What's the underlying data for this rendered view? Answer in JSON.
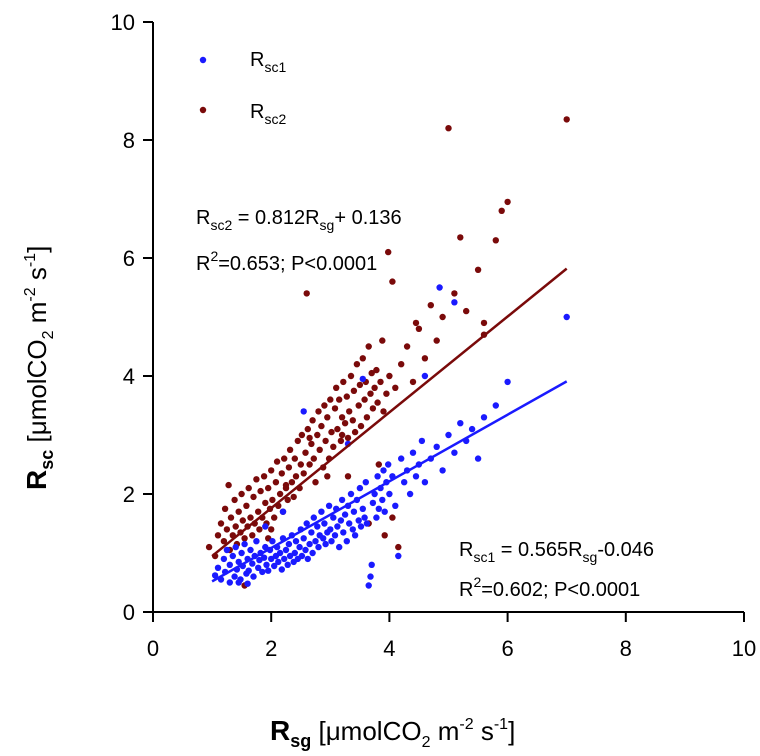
{
  "chart_data": {
    "type": "scatter",
    "xlim": [
      0,
      10
    ],
    "ylim": [
      0,
      10
    ],
    "x_ticks": [
      "0",
      "2",
      "4",
      "6",
      "8",
      "10"
    ],
    "y_ticks": [
      "0",
      "2",
      "4",
      "6",
      "8",
      "10"
    ],
    "xlabel": {
      "main": "R",
      "sub": "sg",
      "unit_pre": " [μmolCO",
      "unit_sub": "2",
      "unit_mid": " m",
      "unit_sup1": "-2",
      "unit_mid2": " s",
      "unit_sup2": "-1",
      "unit_post": "]"
    },
    "ylabel": {
      "main": "R",
      "sub": "sc",
      "unit_pre": " [μmolCO",
      "unit_sub": "2",
      "unit_mid": " m",
      "unit_sup1": "-2",
      "unit_mid2": " s",
      "unit_sup2": "-1",
      "unit_post": "]"
    },
    "grid": false,
    "legend_position": "top-left",
    "series": [
      {
        "name_main": "R",
        "name_sub": "sc1",
        "color": "#1a1aff",
        "fit": {
          "slope": 0.565,
          "intercept": -0.046,
          "x_range": [
            1.0,
            7.0
          ]
        },
        "equation": {
          "lhs_main": "R",
          "lhs_sub": "sc1",
          "mid": " = 0.565R",
          "mid_sub": "sg",
          "rhs": "-0.046"
        },
        "stats": {
          "r": "R",
          "sup": "2",
          "rest": "=0.602; P<0.0001"
        },
        "points": [
          [
            1.05,
            0.62
          ],
          [
            1.1,
            0.75
          ],
          [
            1.15,
            0.55
          ],
          [
            1.2,
            0.9
          ],
          [
            1.22,
            0.68
          ],
          [
            1.25,
            1.05
          ],
          [
            1.3,
            0.5
          ],
          [
            1.3,
            0.8
          ],
          [
            1.35,
            0.95
          ],
          [
            1.38,
            0.6
          ],
          [
            1.4,
            1.1
          ],
          [
            1.42,
            0.72
          ],
          [
            1.45,
            0.85
          ],
          [
            1.48,
            0.55
          ],
          [
            1.5,
            1.0
          ],
          [
            1.52,
            0.78
          ],
          [
            1.55,
            1.15
          ],
          [
            1.58,
            0.65
          ],
          [
            1.6,
            0.9
          ],
          [
            1.62,
            0.7
          ],
          [
            1.65,
            1.05
          ],
          [
            1.68,
            0.82
          ],
          [
            1.7,
            0.6
          ],
          [
            1.72,
            0.95
          ],
          [
            1.75,
            1.2
          ],
          [
            1.78,
            0.75
          ],
          [
            1.8,
            0.88
          ],
          [
            1.82,
            1.0
          ],
          [
            1.85,
            0.68
          ],
          [
            1.88,
            0.92
          ],
          [
            1.9,
            1.1
          ],
          [
            1.92,
            0.8
          ],
          [
            1.95,
            0.7
          ],
          [
            1.98,
            1.05
          ],
          [
            2.0,
            0.9
          ],
          [
            2.02,
            1.2
          ],
          [
            2.05,
            0.78
          ],
          [
            2.08,
            0.95
          ],
          [
            2.1,
            1.1
          ],
          [
            2.12,
            0.85
          ],
          [
            2.15,
            1.0
          ],
          [
            2.18,
            0.72
          ],
          [
            2.2,
            1.25
          ],
          [
            2.22,
            0.9
          ],
          [
            2.25,
            1.05
          ],
          [
            2.28,
            0.8
          ],
          [
            2.3,
            1.15
          ],
          [
            2.32,
            0.95
          ],
          [
            2.35,
            1.3
          ],
          [
            2.38,
            0.85
          ],
          [
            2.4,
            1.0
          ],
          [
            2.42,
            1.2
          ],
          [
            2.45,
            0.9
          ],
          [
            2.48,
            1.1
          ],
          [
            2.5,
            1.4
          ],
          [
            2.52,
            0.95
          ],
          [
            2.55,
            1.25
          ],
          [
            2.58,
            1.05
          ],
          [
            2.6,
            1.5
          ],
          [
            2.62,
            0.9
          ],
          [
            2.65,
            1.15
          ],
          [
            2.68,
            1.35
          ],
          [
            2.7,
            1.0
          ],
          [
            2.72,
            1.6
          ],
          [
            2.75,
            1.2
          ],
          [
            2.78,
            1.45
          ],
          [
            2.8,
            1.1
          ],
          [
            2.82,
            1.3
          ],
          [
            2.85,
            1.7
          ],
          [
            2.88,
            1.25
          ],
          [
            2.9,
            1.5
          ],
          [
            2.92,
            1.15
          ],
          [
            2.95,
            1.35
          ],
          [
            2.98,
            1.8
          ],
          [
            3.0,
            1.4
          ],
          [
            3.02,
            1.2
          ],
          [
            3.05,
            1.6
          ],
          [
            3.08,
            1.3
          ],
          [
            3.1,
            1.75
          ],
          [
            3.12,
            1.45
          ],
          [
            3.15,
            1.1
          ],
          [
            3.18,
            1.55
          ],
          [
            3.2,
            1.9
          ],
          [
            3.22,
            1.35
          ],
          [
            3.25,
            1.65
          ],
          [
            3.28,
            1.2
          ],
          [
            3.3,
            1.8
          ],
          [
            3.32,
            1.5
          ],
          [
            3.35,
            2.0
          ],
          [
            3.38,
            1.4
          ],
          [
            3.4,
            1.7
          ],
          [
            3.42,
            1.3
          ],
          [
            3.45,
            1.9
          ],
          [
            3.48,
            1.55
          ],
          [
            3.5,
            2.1
          ],
          [
            3.52,
            1.45
          ],
          [
            3.55,
            1.75
          ],
          [
            3.58,
            1.6
          ],
          [
            3.6,
            2.2
          ],
          [
            3.62,
            1.5
          ],
          [
            3.65,
            0.45
          ],
          [
            3.68,
            0.6
          ],
          [
            3.7,
            0.8
          ],
          [
            3.72,
            1.85
          ],
          [
            3.75,
            2.0
          ],
          [
            3.78,
            1.6
          ],
          [
            3.8,
            2.3
          ],
          [
            3.82,
            1.75
          ],
          [
            3.85,
            2.1
          ],
          [
            3.88,
            1.9
          ],
          [
            3.9,
            2.4
          ],
          [
            3.92,
            1.7
          ],
          [
            3.95,
            2.2
          ],
          [
            3.98,
            2.5
          ],
          [
            4.0,
            2.0
          ],
          [
            4.05,
            2.3
          ],
          [
            4.1,
            1.8
          ],
          [
            4.15,
            0.95
          ],
          [
            4.2,
            2.6
          ],
          [
            4.25,
            2.2
          ],
          [
            4.3,
            2.4
          ],
          [
            4.35,
            2.0
          ],
          [
            4.4,
            2.7
          ],
          [
            4.45,
            2.3
          ],
          [
            4.5,
            2.5
          ],
          [
            4.55,
            2.9
          ],
          [
            4.6,
            2.2
          ],
          [
            4.7,
            2.6
          ],
          [
            4.8,
            2.8
          ],
          [
            4.85,
            5.5
          ],
          [
            4.9,
            2.4
          ],
          [
            5.0,
            3.0
          ],
          [
            5.1,
            2.7
          ],
          [
            5.2,
            3.2
          ],
          [
            5.3,
            2.9
          ],
          [
            5.4,
            3.1
          ],
          [
            5.5,
            2.6
          ],
          [
            5.6,
            3.3
          ],
          [
            5.8,
            3.5
          ],
          [
            6.0,
            3.9
          ],
          [
            7.0,
            5.0
          ],
          [
            2.55,
            3.4
          ],
          [
            3.55,
            3.95
          ],
          [
            4.6,
            4.0
          ],
          [
            5.1,
            5.25
          ],
          [
            3.3,
            2.85
          ],
          [
            2.2,
            1.7
          ],
          [
            1.9,
            1.45
          ],
          [
            1.45,
            0.5
          ],
          [
            1.6,
            0.48
          ]
        ]
      },
      {
        "name_main": "R",
        "name_sub": "sc2",
        "color": "#7a0a0a",
        "fit": {
          "slope": 0.812,
          "intercept": 0.136,
          "x_range": [
            1.0,
            7.0
          ]
        },
        "equation": {
          "lhs_main": "R",
          "lhs_sub": "sc2",
          "mid": " = 0.812R",
          "mid_sub": "sg",
          "rhs": "+ 0.136"
        },
        "stats": {
          "r": "R",
          "sup": "2",
          "rest": "=0.653; P<0.0001"
        },
        "points": [
          [
            0.95,
            1.1
          ],
          [
            1.05,
            0.95
          ],
          [
            1.1,
            1.3
          ],
          [
            1.15,
            1.5
          ],
          [
            1.2,
            1.2
          ],
          [
            1.22,
            1.75
          ],
          [
            1.25,
            1.4
          ],
          [
            1.28,
            2.15
          ],
          [
            1.3,
            1.05
          ],
          [
            1.32,
            1.6
          ],
          [
            1.35,
            1.3
          ],
          [
            1.38,
            1.9
          ],
          [
            1.4,
            1.45
          ],
          [
            1.42,
            1.15
          ],
          [
            1.45,
            1.7
          ],
          [
            1.48,
            1.35
          ],
          [
            1.5,
            2.0
          ],
          [
            1.52,
            1.55
          ],
          [
            1.55,
            0.45
          ],
          [
            1.55,
            1.25
          ],
          [
            1.58,
            1.8
          ],
          [
            1.6,
            1.45
          ],
          [
            1.62,
            2.1
          ],
          [
            1.65,
            1.6
          ],
          [
            1.68,
            1.3
          ],
          [
            1.7,
            1.95
          ],
          [
            1.72,
            1.5
          ],
          [
            1.75,
            2.25
          ],
          [
            1.78,
            1.7
          ],
          [
            1.8,
            1.4
          ],
          [
            1.82,
            2.05
          ],
          [
            1.85,
            1.6
          ],
          [
            1.88,
            2.3
          ],
          [
            1.9,
            1.85
          ],
          [
            1.92,
            1.5
          ],
          [
            1.95,
            2.1
          ],
          [
            1.98,
            1.75
          ],
          [
            2.0,
            2.4
          ],
          [
            2.02,
            1.9
          ],
          [
            2.05,
            1.6
          ],
          [
            2.08,
            2.2
          ],
          [
            2.1,
            2.55
          ],
          [
            2.12,
            1.8
          ],
          [
            2.15,
            2.0
          ],
          [
            2.18,
            2.35
          ],
          [
            2.2,
            1.7
          ],
          [
            2.22,
            2.6
          ],
          [
            2.25,
            2.1
          ],
          [
            2.28,
            1.9
          ],
          [
            2.3,
            2.45
          ],
          [
            2.32,
            2.75
          ],
          [
            2.35,
            2.2
          ],
          [
            2.38,
            1.95
          ],
          [
            2.4,
            2.6
          ],
          [
            2.42,
            2.3
          ],
          [
            2.45,
            2.9
          ],
          [
            2.48,
            2.1
          ],
          [
            2.5,
            2.5
          ],
          [
            2.52,
            3.0
          ],
          [
            2.55,
            2.35
          ],
          [
            2.58,
            2.7
          ],
          [
            2.6,
            5.4
          ],
          [
            2.62,
            3.1
          ],
          [
            2.65,
            2.5
          ],
          [
            2.68,
            2.85
          ],
          [
            2.7,
            3.25
          ],
          [
            2.72,
            2.6
          ],
          [
            2.75,
            2.2
          ],
          [
            2.78,
            3.0
          ],
          [
            2.8,
            3.4
          ],
          [
            2.82,
            2.75
          ],
          [
            2.85,
            3.15
          ],
          [
            2.88,
            2.45
          ],
          [
            2.9,
            3.5
          ],
          [
            2.92,
            2.9
          ],
          [
            2.95,
            3.3
          ],
          [
            2.98,
            2.6
          ],
          [
            3.0,
            3.6
          ],
          [
            3.02,
            3.05
          ],
          [
            3.05,
            2.8
          ],
          [
            3.08,
            3.45
          ],
          [
            3.1,
            3.8
          ],
          [
            3.12,
            3.1
          ],
          [
            3.15,
            3.6
          ],
          [
            3.18,
            2.9
          ],
          [
            3.2,
            3.3
          ],
          [
            3.22,
            3.9
          ],
          [
            3.25,
            3.2
          ],
          [
            3.28,
            3.65
          ],
          [
            3.3,
            2.95
          ],
          [
            3.32,
            3.4
          ],
          [
            3.35,
            4.0
          ],
          [
            3.38,
            3.25
          ],
          [
            3.4,
            3.75
          ],
          [
            3.42,
            3.05
          ],
          [
            3.45,
            4.2
          ],
          [
            3.48,
            3.5
          ],
          [
            3.5,
            3.85
          ],
          [
            3.52,
            3.15
          ],
          [
            3.55,
            4.3
          ],
          [
            3.58,
            3.6
          ],
          [
            3.6,
            3.9
          ],
          [
            3.62,
            3.3
          ],
          [
            3.65,
            4.5
          ],
          [
            3.68,
            3.7
          ],
          [
            3.7,
            4.05
          ],
          [
            3.72,
            3.45
          ],
          [
            3.75,
            3.8
          ],
          [
            3.78,
            4.1
          ],
          [
            3.8,
            3.55
          ],
          [
            3.82,
            2.5
          ],
          [
            3.85,
            3.9
          ],
          [
            3.88,
            4.6
          ],
          [
            3.9,
            3.4
          ],
          [
            3.92,
            1.3
          ],
          [
            3.95,
            3.7
          ],
          [
            3.98,
            6.1
          ],
          [
            4.0,
            4.0
          ],
          [
            4.05,
            5.6
          ],
          [
            4.1,
            3.8
          ],
          [
            4.15,
            1.1
          ],
          [
            4.2,
            4.2
          ],
          [
            4.3,
            4.5
          ],
          [
            4.4,
            3.9
          ],
          [
            4.5,
            4.8
          ],
          [
            4.6,
            4.3
          ],
          [
            4.7,
            5.2
          ],
          [
            4.8,
            4.6
          ],
          [
            4.9,
            5.0
          ],
          [
            5.0,
            8.2
          ],
          [
            5.1,
            5.4
          ],
          [
            5.2,
            6.35
          ],
          [
            5.3,
            5.1
          ],
          [
            5.5,
            5.8
          ],
          [
            5.6,
            4.7
          ],
          [
            5.8,
            6.3
          ],
          [
            5.9,
            6.8
          ],
          [
            6.0,
            6.95
          ],
          [
            7.0,
            8.35
          ],
          [
            3.3,
            2.3
          ],
          [
            2.0,
            1.4
          ],
          [
            2.25,
            2.15
          ],
          [
            2.95,
            2.3
          ],
          [
            3.65,
            1.5
          ],
          [
            4.05,
            1.6
          ],
          [
            5.6,
            4.9
          ],
          [
            4.45,
            4.9
          ],
          [
            3.2,
            3.0
          ],
          [
            2.65,
            2.95
          ],
          [
            1.95,
            1.25
          ]
        ]
      }
    ]
  }
}
